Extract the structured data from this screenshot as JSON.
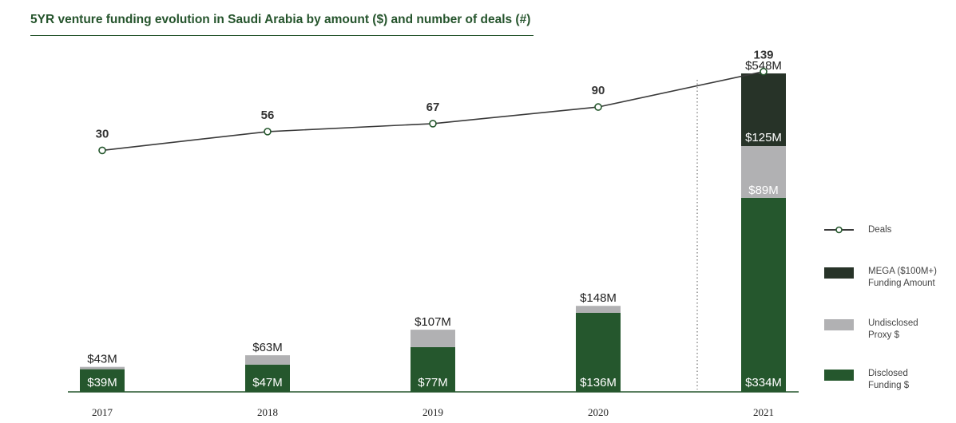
{
  "title": "5YR venture funding evolution in Saudi Arabia by amount ($) and number of deals (#)",
  "colors": {
    "disclosed": "#25572d",
    "undisclosed": "#b1b1b3",
    "mega": "#273328",
    "line": "#3a3a3a",
    "marker": "#25572d",
    "title": "#25542c"
  },
  "legend": {
    "deals": "Deals",
    "mega_1": "MEGA ($100M+)",
    "mega_2": "Funding Amount",
    "undisclosed_1": "Undisclosed",
    "undisclosed_2": "Proxy $",
    "disclosed_1": "Disclosed",
    "disclosed_2": "Funding $"
  },
  "chart_data": {
    "type": "bar",
    "categories": [
      "2017",
      "2018",
      "2019",
      "2020",
      "2021"
    ],
    "series": [
      {
        "name": "Disclosed Funding $",
        "values": [
          39,
          47,
          77,
          136,
          334
        ],
        "labels": [
          "$39M",
          "$47M",
          "$77M",
          "$136M",
          "$334M"
        ]
      },
      {
        "name": "Undisclosed Proxy $",
        "values": [
          4,
          16,
          30,
          12,
          89
        ],
        "labels": [
          "",
          "",
          "",
          "",
          "$89M"
        ]
      },
      {
        "name": "MEGA ($100M+) Funding Amount",
        "values": [
          0,
          0,
          0,
          0,
          125
        ],
        "labels": [
          "",
          "",
          "",
          "",
          "$125M"
        ]
      },
      {
        "name": "Deals",
        "type": "line",
        "values": [
          30,
          56,
          67,
          90,
          139
        ],
        "labels": [
          "30",
          "56",
          "67",
          "90",
          "139"
        ]
      }
    ],
    "totals": [
      "$43M",
      "$63M",
      "$107M",
      "$148M",
      "$548M"
    ],
    "unit": "$M"
  }
}
